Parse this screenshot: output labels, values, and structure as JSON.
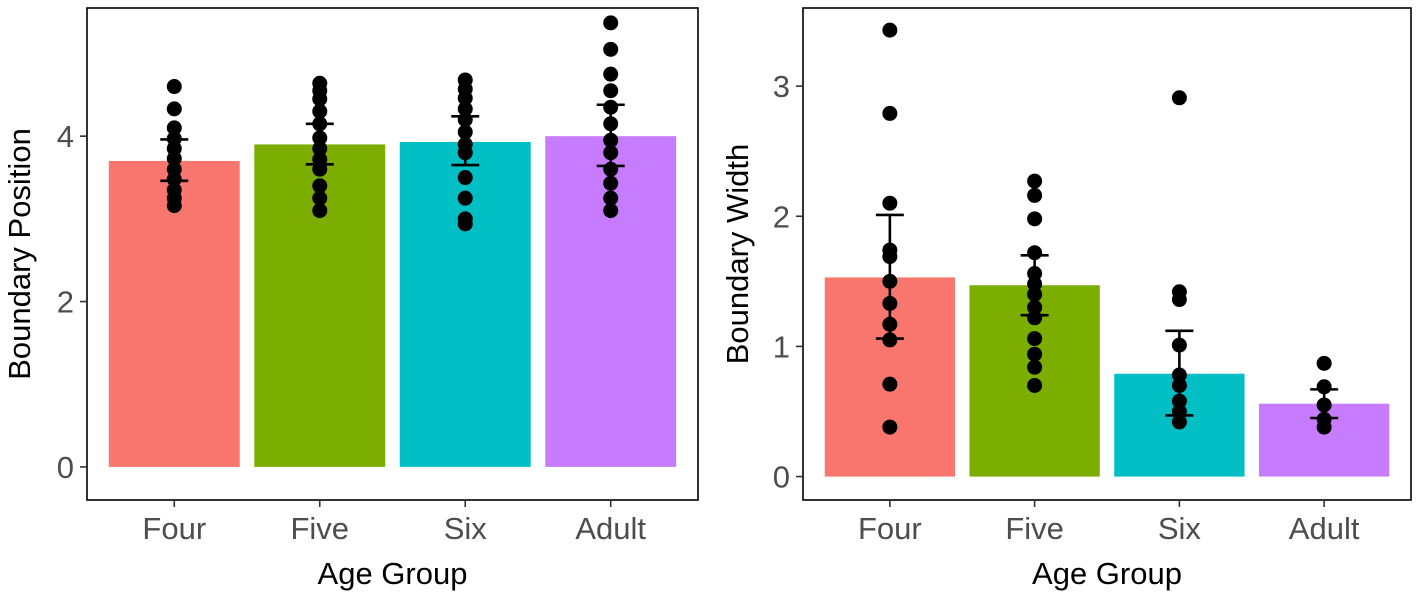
{
  "chart_data": [
    {
      "type": "bar",
      "title": "",
      "xlabel": "Age Group",
      "ylabel": "Boundary Position",
      "categories": [
        "Four",
        "Five",
        "Six",
        "Adult"
      ],
      "colors": [
        "#F8766D",
        "#7CAE00",
        "#00BFC4",
        "#C77CFF"
      ],
      "ylim": [
        -0.4,
        5.55
      ],
      "yticks": [
        0,
        2,
        4
      ],
      "ytick_labels": [
        "0",
        "2",
        "4"
      ],
      "grid": false,
      "values": [
        3.7,
        3.9,
        3.93,
        4.0
      ],
      "error_bars": [
        {
          "low": 3.46,
          "high": 3.96
        },
        {
          "low": 3.66,
          "high": 4.15
        },
        {
          "low": 3.65,
          "high": 4.24
        },
        {
          "low": 3.64,
          "high": 4.38
        }
      ],
      "points": [
        [
          4.6,
          4.33,
          4.1,
          3.97,
          3.85,
          3.73,
          3.6,
          3.48,
          3.35,
          3.25,
          3.16
        ],
        [
          4.64,
          4.55,
          4.45,
          4.3,
          4.15,
          3.98,
          3.85,
          3.72,
          3.6,
          3.4,
          3.25,
          3.1
        ],
        [
          4.68,
          4.57,
          4.46,
          4.33,
          4.2,
          4.05,
          3.9,
          3.8,
          3.5,
          3.25,
          3.0,
          2.94
        ],
        [
          5.37,
          5.05,
          4.75,
          4.55,
          4.35,
          4.15,
          3.95,
          3.8,
          3.6,
          3.43,
          3.25,
          3.1
        ]
      ]
    },
    {
      "type": "bar",
      "title": "",
      "xlabel": "Age Group",
      "ylabel": "Boundary Width",
      "categories": [
        "Four",
        "Five",
        "Six",
        "Adult"
      ],
      "colors": [
        "#F8766D",
        "#7CAE00",
        "#00BFC4",
        "#C77CFF"
      ],
      "ylim": [
        -0.18,
        3.6
      ],
      "yticks": [
        0,
        1,
        2,
        3
      ],
      "ytick_labels": [
        "0",
        "1",
        "2",
        "3"
      ],
      "grid": false,
      "values": [
        1.53,
        1.47,
        0.79,
        0.56
      ],
      "error_bars": [
        {
          "low": 1.06,
          "high": 2.01
        },
        {
          "low": 1.24,
          "high": 1.7
        },
        {
          "low": 0.47,
          "high": 1.12
        },
        {
          "low": 0.45,
          "high": 0.67
        }
      ],
      "points": [
        [
          3.43,
          2.79,
          2.1,
          1.74,
          1.69,
          1.5,
          1.33,
          1.17,
          1.05,
          0.71,
          0.38
        ],
        [
          2.27,
          2.16,
          1.98,
          1.72,
          1.56,
          1.48,
          1.4,
          1.3,
          1.22,
          1.06,
          0.94,
          0.84,
          0.7
        ],
        [
          2.91,
          1.42,
          1.36,
          1.01,
          0.78,
          0.7,
          0.58,
          0.5,
          0.42
        ],
        [
          0.87,
          0.69,
          0.55,
          0.44,
          0.38
        ]
      ]
    }
  ]
}
